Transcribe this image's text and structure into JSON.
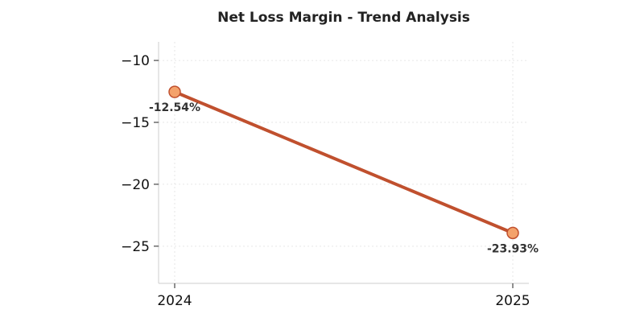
{
  "chart_data": {
    "type": "line",
    "title": "Net Loss Margin - Trend Analysis",
    "xlabel": "",
    "ylabel": "",
    "categories": [
      "2024",
      "2025"
    ],
    "series": [
      {
        "values": [
          -12.54,
          -23.93
        ],
        "data_labels": [
          "-12.54%",
          "-23.93%"
        ]
      }
    ],
    "ylim": [
      -28,
      -8.5
    ],
    "yticks": [
      -10,
      -15,
      -20,
      -25
    ],
    "ytick_labels": [
      "−10",
      "−15",
      "−20",
      "−25"
    ],
    "grid": true,
    "legend": "none",
    "colors": {
      "line": "#c0502e",
      "marker_fill": "#f4a26b",
      "marker_edge": "#c0502e"
    }
  }
}
